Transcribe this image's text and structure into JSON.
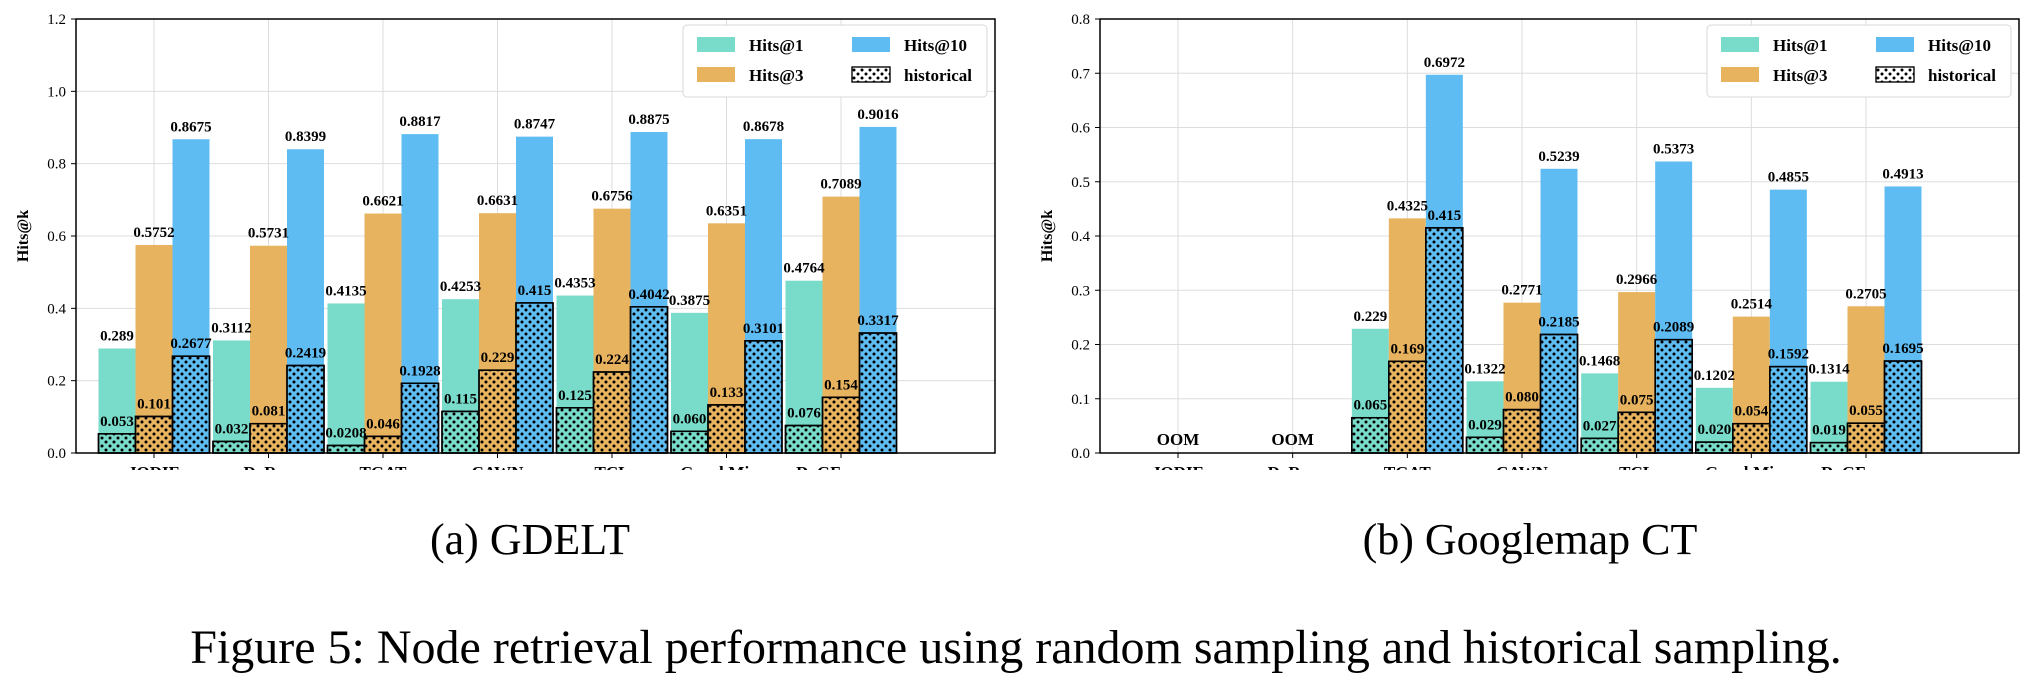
{
  "colors": {
    "hits1": "#79dccb",
    "hits3": "#e8b35f",
    "hits10": "#5ebcf3",
    "grid": "#dddddd",
    "axis": "#000000"
  },
  "subcaptions": {
    "a_tag": "(a)",
    "a_name": "GDELT",
    "b_tag": "(b)",
    "b_name": "Googlemap CT"
  },
  "caption": "Figure 5: Node retrieval performance using random sampling and historical sampling.",
  "chart_data": [
    {
      "type": "bar",
      "ylabel": "Hits@k",
      "ylim": [
        0,
        1.2
      ],
      "yticks": [
        "0.0",
        "0.2",
        "0.4",
        "0.6",
        "0.8",
        "1.0",
        "1.2"
      ],
      "grid": true,
      "legend_position": "top-right",
      "categories": [
        "JODIE",
        "DyRep",
        "TGAT",
        "CAWN",
        "TCL",
        "GraphMixer",
        "DyGFormer"
      ],
      "series": [
        {
          "name": "Hits@1",
          "key": "hits1",
          "values": [
            0.289,
            0.3112,
            0.4135,
            0.4253,
            0.4353,
            0.3875,
            0.4764
          ],
          "labels": [
            "0.289",
            "0.3112",
            "0.4135",
            "0.4253",
            "0.4353",
            "0.3875",
            "0.4764"
          ]
        },
        {
          "name": "Hits@3",
          "key": "hits3",
          "values": [
            0.5752,
            0.5731,
            0.6621,
            0.6631,
            0.6756,
            0.6351,
            0.7089
          ],
          "labels": [
            "0.5752",
            "0.5731",
            "0.6621",
            "0.6631",
            "0.6756",
            "0.6351",
            "0.7089"
          ]
        },
        {
          "name": "Hits@10",
          "key": "hits10",
          "values": [
            0.8675,
            0.8399,
            0.8817,
            0.8747,
            0.8875,
            0.8678,
            0.9016
          ],
          "labels": [
            "0.8675",
            "0.8399",
            "0.8817",
            "0.8747",
            "0.8875",
            "0.8678",
            "0.9016"
          ]
        }
      ],
      "historical": {
        "name": "historical",
        "hits1": [
          0.053,
          0.032,
          0.0208,
          0.115,
          0.125,
          0.06,
          0.076
        ],
        "hits1_labels": [
          "0.053",
          "0.032",
          "0.0208",
          "0.115",
          "0.125",
          "0.060",
          "0.076"
        ],
        "hits3": [
          0.101,
          0.081,
          0.046,
          0.229,
          0.224,
          0.133,
          0.154
        ],
        "hits3_labels": [
          "0.101",
          "0.081",
          "0.046",
          "0.229",
          "0.224",
          "0.133",
          "0.154"
        ],
        "hits10": [
          0.2677,
          0.2419,
          0.1928,
          0.415,
          0.4042,
          0.3101,
          0.3317
        ],
        "hits10_labels": [
          "0.2677",
          "0.2419",
          "0.1928",
          "0.415",
          "0.4042",
          "0.3101",
          "0.3317"
        ]
      },
      "annotations": []
    },
    {
      "type": "bar",
      "ylabel": "Hits@k",
      "ylim": [
        0,
        0.8
      ],
      "yticks": [
        "0.0",
        "0.1",
        "0.2",
        "0.3",
        "0.4",
        "0.5",
        "0.6",
        "0.7",
        "0.8"
      ],
      "grid": true,
      "legend_position": "top-right",
      "categories": [
        "JODIE",
        "DyRep",
        "TGAT",
        "CAWN",
        "TCL",
        "GraphMixer",
        "DyGFormer"
      ],
      "series": [
        {
          "name": "Hits@1",
          "key": "hits1",
          "values": [
            null,
            null,
            0.229,
            0.1322,
            0.1468,
            0.1202,
            0.1314
          ],
          "labels": [
            "",
            "",
            "0.229",
            "0.1322",
            "0.1468",
            "0.1202",
            "0.1314"
          ]
        },
        {
          "name": "Hits@3",
          "key": "hits3",
          "values": [
            null,
            null,
            0.4325,
            0.2771,
            0.2966,
            0.2514,
            0.2705
          ],
          "labels": [
            "",
            "",
            "0.4325",
            "0.2771",
            "0.2966",
            "0.2514",
            "0.2705"
          ]
        },
        {
          "name": "Hits@10",
          "key": "hits10",
          "values": [
            null,
            null,
            0.6972,
            0.5239,
            0.5373,
            0.4855,
            0.4913
          ],
          "labels": [
            "",
            "",
            "0.6972",
            "0.5239",
            "0.5373",
            "0.4855",
            "0.4913"
          ]
        }
      ],
      "historical": {
        "name": "historical",
        "hits1": [
          null,
          null,
          0.065,
          0.029,
          0.027,
          0.0201,
          0.0191
        ],
        "hits1_labels": [
          "",
          "",
          "0.065",
          "0.029",
          "0.027",
          "0.020",
          "0.019"
        ],
        "hits3": [
          null,
          null,
          0.169,
          0.08,
          0.075,
          0.054,
          0.055
        ],
        "hits3_labels": [
          "",
          "",
          "0.169",
          "0.080",
          "0.075",
          "0.054",
          "0.055"
        ],
        "hits10": [
          null,
          null,
          0.415,
          0.2185,
          0.2089,
          0.1592,
          0.1695
        ],
        "hits10_labels": [
          "",
          "",
          "0.415",
          "0.2185",
          "0.2089",
          "0.1592",
          "0.1695"
        ]
      },
      "annotations": [
        {
          "category": "JODIE",
          "text": "OOM"
        },
        {
          "category": "DyRep",
          "text": "OOM"
        }
      ]
    }
  ]
}
